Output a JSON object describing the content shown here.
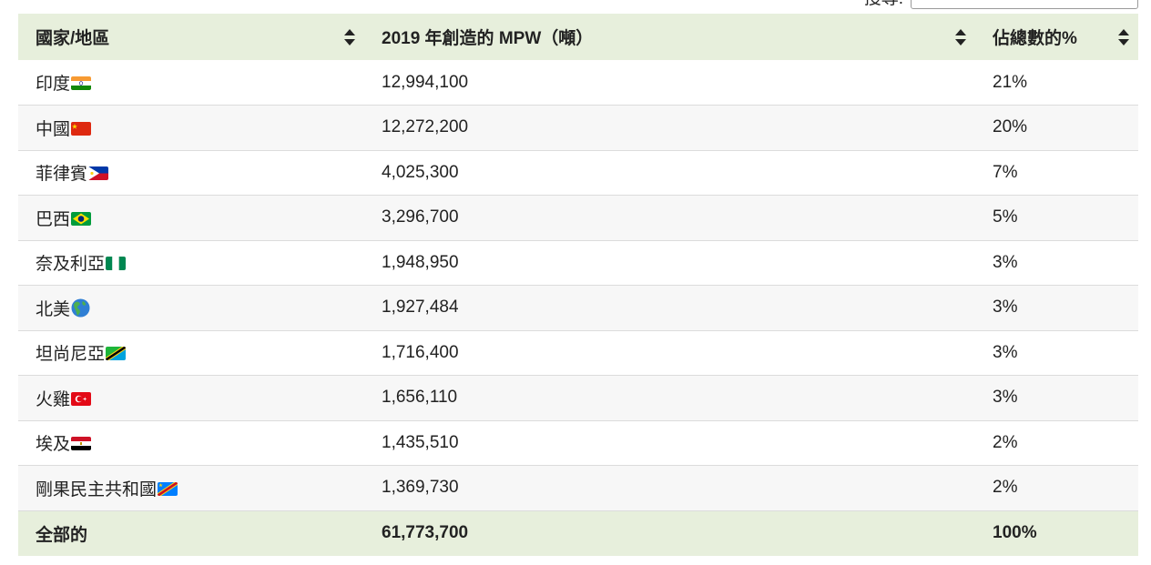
{
  "search": {
    "label": "搜尋:",
    "value": ""
  },
  "table": {
    "columns": [
      {
        "label": "國家/地區"
      },
      {
        "label": "2019 年創造的 MPW（噸）"
      },
      {
        "label": "佔總數的%"
      }
    ],
    "rows": [
      {
        "country": "印度",
        "flag": "india-flag-icon",
        "mpw": "12,994,100",
        "percent": "21%"
      },
      {
        "country": "中國",
        "flag": "china-flag-icon",
        "mpw": "12,272,200",
        "percent": "20%"
      },
      {
        "country": "菲律賓",
        "flag": "philippines-flag-icon",
        "mpw": "4,025,300",
        "percent": "7%"
      },
      {
        "country": "巴西",
        "flag": "brazil-flag-icon",
        "mpw": "3,296,700",
        "percent": "5%"
      },
      {
        "country": "奈及利亞",
        "flag": "nigeria-flag-icon",
        "mpw": "1,948,950",
        "percent": "3%"
      },
      {
        "country": "北美",
        "flag": "globe-americas-icon",
        "mpw": "1,927,484",
        "percent": "3%"
      },
      {
        "country": "坦尚尼亞",
        "flag": "tanzania-flag-icon",
        "mpw": "1,716,400",
        "percent": "3%"
      },
      {
        "country": "火雞",
        "flag": "turkey-flag-icon",
        "mpw": "1,656,110",
        "percent": "3%"
      },
      {
        "country": "埃及",
        "flag": "egypt-flag-icon",
        "mpw": "1,435,510",
        "percent": "2%"
      },
      {
        "country": "剛果民主共和國",
        "flag": "dr-congo-flag-icon",
        "mpw": "1,369,730",
        "percent": "2%"
      }
    ],
    "footer": {
      "label": "全部的",
      "mpw": "61,773,700",
      "percent": "100%"
    }
  },
  "colors": {
    "header_bg": "#e7efdc",
    "stripe_bg": "#f7f7f7",
    "border": "#dcdcdc"
  }
}
